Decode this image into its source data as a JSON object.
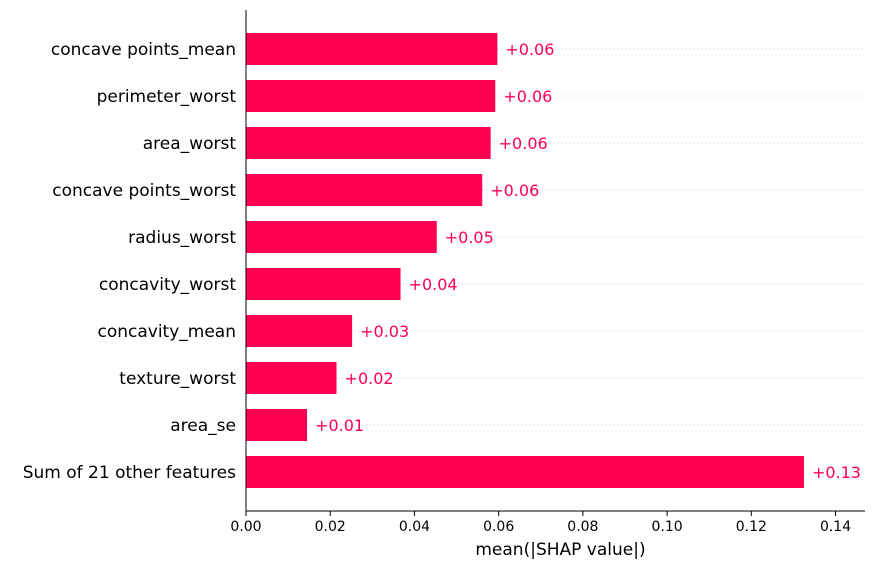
{
  "chart_data": {
    "type": "bar",
    "orientation": "horizontal",
    "categories": [
      "concave points_mean",
      "perimeter_worst",
      "area_worst",
      "concave points_worst",
      "radius_worst",
      "concavity_worst",
      "concavity_mean",
      "texture_worst",
      "area_se",
      "Sum of 21 other features"
    ],
    "values": [
      0.0597,
      0.0592,
      0.0581,
      0.0561,
      0.0453,
      0.0367,
      0.0252,
      0.0215,
      0.0145,
      0.1325
    ],
    "value_labels": [
      "+0.06",
      "+0.06",
      "+0.06",
      "+0.06",
      "+0.05",
      "+0.04",
      "+0.03",
      "+0.02",
      "+0.01",
      "+0.13"
    ],
    "xlabel": "mean(|SHAP value|)",
    "ylabel": "",
    "xlim": [
      0,
      0.147
    ],
    "xticks": [
      0.0,
      0.02,
      0.04,
      0.06,
      0.08,
      0.1,
      0.12,
      0.14
    ],
    "xtick_labels": [
      "0.00",
      "0.02",
      "0.04",
      "0.06",
      "0.08",
      "0.10",
      "0.12",
      "0.14"
    ],
    "gridlines": "horizontal dotted",
    "bar_color": "#ff0051",
    "label_color": "#ff0051"
  }
}
